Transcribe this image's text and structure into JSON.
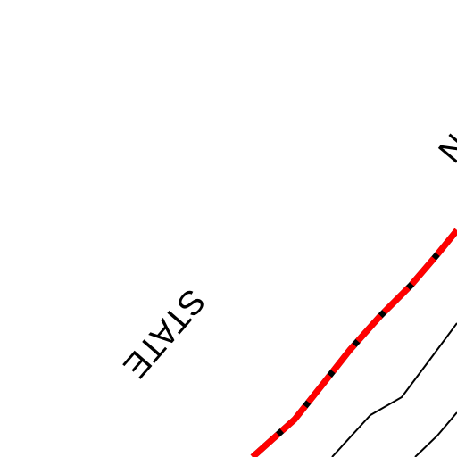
{
  "labels": {
    "state": "STATE",
    "partial": "N"
  }
}
